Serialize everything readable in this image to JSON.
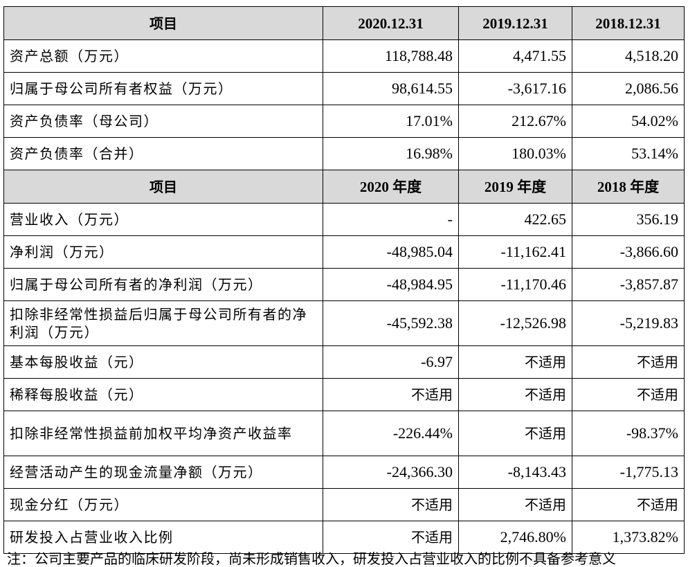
{
  "sections": [
    {
      "headers": [
        "项目",
        "2020.12.31",
        "2019.12.31",
        "2018.12.31"
      ],
      "rows": [
        {
          "label": "资产总额（万元）",
          "values": [
            "118,788.48",
            "4,471.55",
            "4,518.20"
          ]
        },
        {
          "label": "归属于母公司所有者权益（万元）",
          "values": [
            "98,614.55",
            "-3,617.16",
            "2,086.56"
          ]
        },
        {
          "label": "资产负债率（母公司）",
          "values": [
            "17.01%",
            "212.67%",
            "54.02%"
          ]
        },
        {
          "label": "资产负债率（合并）",
          "values": [
            "16.98%",
            "180.03%",
            "53.14%"
          ]
        }
      ]
    },
    {
      "headers": [
        "项目",
        "2020 年度",
        "2019 年度",
        "2018 年度"
      ],
      "rows": [
        {
          "label": "营业收入（万元）",
          "values": [
            "-",
            "422.65",
            "356.19"
          ]
        },
        {
          "label": "净利润（万元）",
          "values": [
            "-48,985.04",
            "-11,162.41",
            "-3,866.60"
          ]
        },
        {
          "label": "归属于母公司所有者的净利润（万元）",
          "values": [
            "-48,984.95",
            "-11,170.46",
            "-3,857.87"
          ]
        },
        {
          "label": "扣除非经常性损益后归属于母公司所有者的净利润（万元）",
          "values": [
            "-45,592.38",
            "-12,526.98",
            "-5,219.83"
          ],
          "wrap": true
        },
        {
          "label": "基本每股收益（元）",
          "values": [
            "-6.97",
            "不适用",
            "不适用"
          ]
        },
        {
          "label": "稀释每股收益（元）",
          "values": [
            "不适用",
            "不适用",
            "不适用"
          ]
        },
        {
          "label": "扣除非经常性损益前加权平均净资产收益率",
          "values": [
            "-226.44%",
            "不适用",
            "-98.37%"
          ],
          "wrap": true
        },
        {
          "label": "经营活动产生的现金流量净额（万元）",
          "values": [
            "-24,366.30",
            "-8,143.43",
            "-1,775.13"
          ]
        },
        {
          "label": "现金分红（万元）",
          "values": [
            "不适用",
            "不适用",
            "不适用"
          ]
        },
        {
          "label": "研发投入占营业收入比例",
          "values": [
            "不适用",
            "2,746.80%",
            "1,373.82%"
          ]
        }
      ]
    }
  ],
  "footnote": "注：公司主要产品的临床研发阶段，尚未形成销售收入，研发投入占营业收入的比例不具备参考意义"
}
